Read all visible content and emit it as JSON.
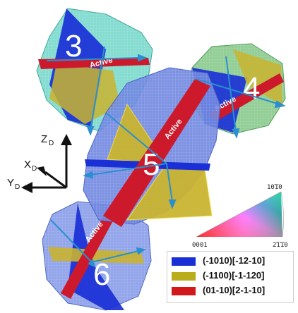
{
  "grains": [
    {
      "label": "3"
    },
    {
      "label": "4"
    },
    {
      "label": "5"
    },
    {
      "label": "6"
    }
  ],
  "active_label": "Active",
  "axes": {
    "z": {
      "main": "Z",
      "sub": "D"
    },
    "x": {
      "main": "X",
      "sub": "D"
    },
    "y": {
      "main": "Y",
      "sub": "D"
    }
  },
  "ipf_key": {
    "corner_a": "0001",
    "corner_b": "1010",
    "corner_c": "2110",
    "overbar_hint": "10̅1̅0 / 21̅1̅0"
  },
  "legend": [
    {
      "label": "(-1010)[-12-10]",
      "color": "#1a2fd6"
    },
    {
      "label": "(-1100)[-1-120]",
      "color": "#b9ad1e"
    },
    {
      "label": "(01-10)[2-1-10]",
      "color": "#d21818"
    }
  ],
  "colors": {
    "slip_blue": "#1a2fd6",
    "slip_yellow": "#c9b430",
    "slip_red": "#cc1a2c",
    "grain_cyan": "#6fd6c8",
    "grain_green": "#86c98a",
    "grain_blue": "#7f95e6",
    "arrow": "#2a8fd0"
  }
}
